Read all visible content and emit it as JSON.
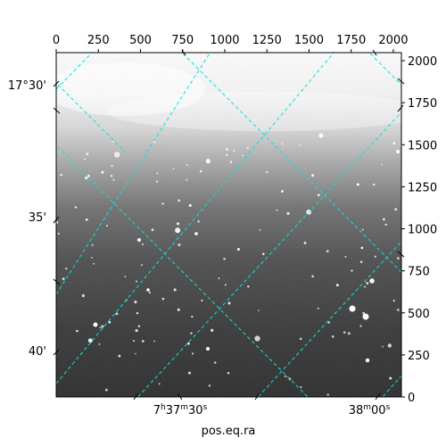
{
  "figure": {
    "xlabel": "pos.eq.ra",
    "ra_ticks": [
      {
        "h": "7",
        "m": "37",
        "s": "30",
        "fmt": "hms"
      },
      {
        "m": "38",
        "s": "00",
        "fmt": "ms"
      }
    ],
    "dec_ticks": [
      "17°30'",
      "35'",
      "40'"
    ],
    "pixel_x_ticks": [
      "0",
      "250",
      "500",
      "750",
      "1000",
      "1250",
      "1500",
      "1750",
      "2000"
    ],
    "pixel_y_ticks": [
      "2000",
      "1750",
      "1500",
      "1250",
      "1000",
      "750",
      "500",
      "250",
      "0"
    ],
    "grid_color": "#00e5e5"
  }
}
